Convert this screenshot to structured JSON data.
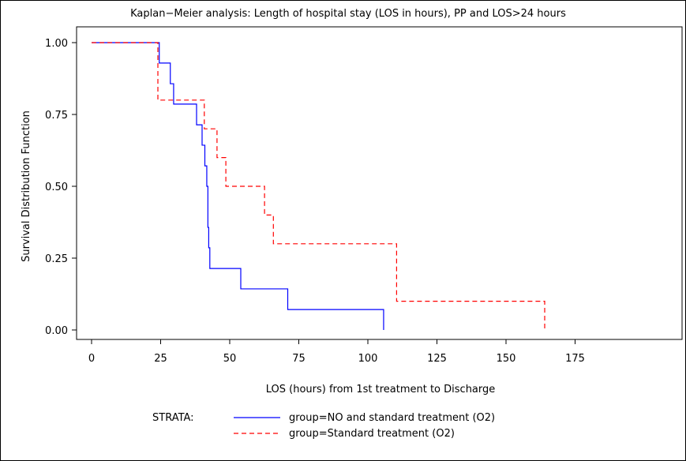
{
  "chart_data": {
    "type": "line",
    "title": "Kaplan−Meier analysis: Length of hospital stay (LOS in hours), PP and LOS>24 hours",
    "xlabel": "LOS (hours) from 1st treatment to Discharge",
    "ylabel": "Survival Distribution Function",
    "xlim": [
      0,
      175
    ],
    "ylim": [
      0,
      1
    ],
    "xticks": [
      0,
      25,
      50,
      75,
      100,
      125,
      150,
      175
    ],
    "yticks": [
      0,
      0.25,
      0.5,
      0.75,
      1.0
    ],
    "xtick_labels": [
      "0",
      "25",
      "50",
      "75",
      "100",
      "125",
      "150",
      "175"
    ],
    "ytick_labels": [
      "0.00",
      "0.25",
      "0.50",
      "0.75",
      "1.00"
    ],
    "legend_title": "STRATA:",
    "legend_position": "bottom",
    "series": [
      {
        "name": "group=NO and standard treatment (O2)",
        "color": "#0000ff",
        "style": "solid",
        "x": [
          0,
          24.5,
          28.5,
          29.7,
          38,
          40,
          41,
          41.7,
          42.1,
          42.4,
          42.8,
          54,
          71,
          105.7
        ],
        "y": [
          1.0,
          0.929,
          0.857,
          0.786,
          0.714,
          0.643,
          0.571,
          0.5,
          0.357,
          0.286,
          0.214,
          0.143,
          0.071,
          0.0
        ]
      },
      {
        "name": "group=Standard treatment (O2)",
        "color": "#ff0000",
        "style": "dashed",
        "x": [
          0,
          24,
          40.8,
          45.4,
          48.6,
          62.6,
          65.8,
          110.4,
          164
        ],
        "y": [
          1.0,
          0.8,
          0.7,
          0.6,
          0.5,
          0.4,
          0.3,
          0.1,
          0.0
        ]
      }
    ]
  }
}
